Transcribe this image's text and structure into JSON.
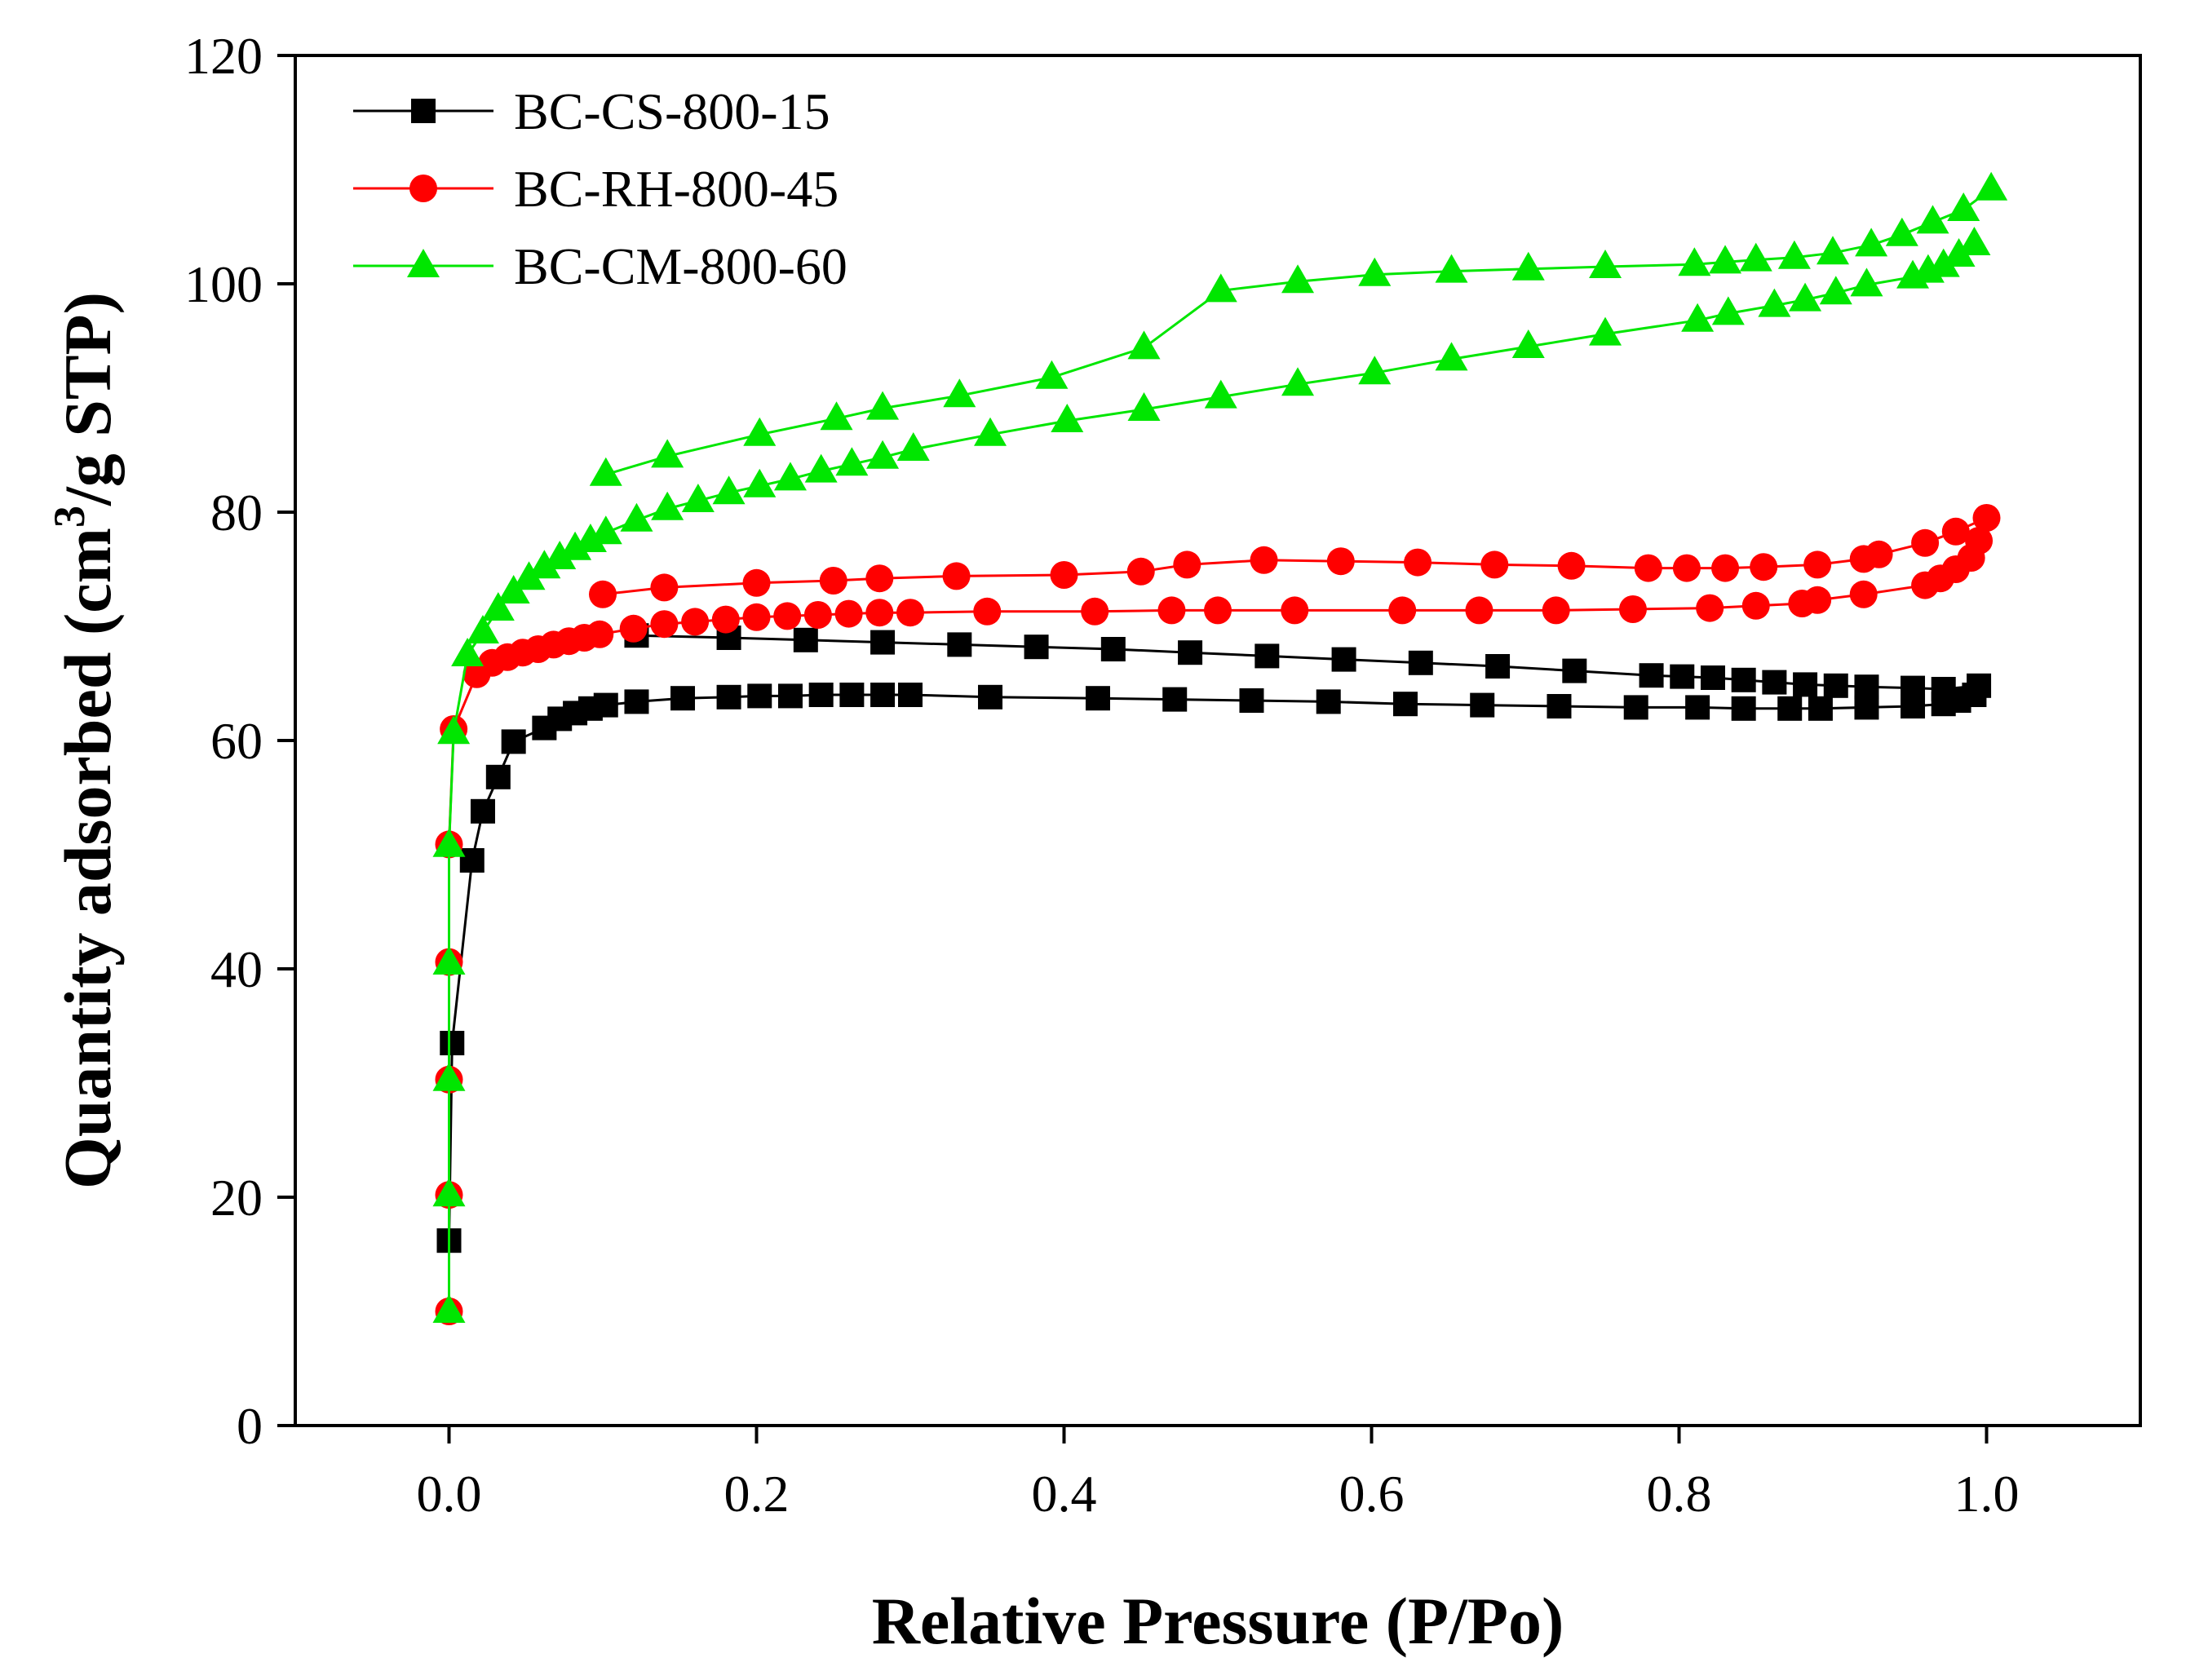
{
  "chart_data": {
    "type": "scatter",
    "xlabel": "Relative Pressure (P/Po)",
    "ylabel_parts": [
      "Quantity adsorbed (cm",
      "3",
      "/g STP)"
    ],
    "xlim": [
      -0.1,
      1.1
    ],
    "ylim": [
      0,
      120
    ],
    "x_ticks": [
      0.0,
      0.2,
      0.4,
      0.6,
      0.8,
      1.0
    ],
    "x_tick_labels": [
      "0.0",
      "0.2",
      "0.4",
      "0.6",
      "0.8",
      "1.0"
    ],
    "y_ticks": [
      0,
      20,
      40,
      60,
      80,
      100,
      120
    ],
    "y_tick_labels": [
      "0",
      "20",
      "40",
      "60",
      "80",
      "100",
      "120"
    ],
    "grid": false,
    "legend_position": "top-left",
    "series": [
      {
        "name": "BC-CS-800-15",
        "color": "#000000",
        "marker": "square",
        "adsorption": [
          [
            0.0,
            16.2
          ],
          [
            0.002,
            33.5
          ],
          [
            0.015,
            49.5
          ],
          [
            0.022,
            53.8
          ],
          [
            0.032,
            56.8
          ],
          [
            0.042,
            59.9
          ],
          [
            0.062,
            61.1
          ],
          [
            0.072,
            61.9
          ],
          [
            0.082,
            62.4
          ],
          [
            0.092,
            62.8
          ],
          [
            0.102,
            63.1
          ],
          [
            0.122,
            63.4
          ],
          [
            0.152,
            63.7
          ],
          [
            0.182,
            63.8
          ],
          [
            0.202,
            63.9
          ],
          [
            0.222,
            63.9
          ],
          [
            0.242,
            64.0
          ],
          [
            0.262,
            64.0
          ],
          [
            0.282,
            64.0
          ],
          [
            0.3,
            64.0
          ],
          [
            0.352,
            63.8
          ],
          [
            0.422,
            63.7
          ],
          [
            0.472,
            63.6
          ],
          [
            0.522,
            63.5
          ],
          [
            0.572,
            63.4
          ],
          [
            0.622,
            63.2
          ],
          [
            0.672,
            63.1
          ],
          [
            0.722,
            63.0
          ],
          [
            0.772,
            62.9
          ],
          [
            0.812,
            62.9
          ],
          [
            0.842,
            62.8
          ],
          [
            0.872,
            62.8
          ],
          [
            0.892,
            62.8
          ],
          [
            0.922,
            62.9
          ],
          [
            0.952,
            63.0
          ],
          [
            0.972,
            63.2
          ],
          [
            0.982,
            63.5
          ],
          [
            0.992,
            64.0
          ]
        ],
        "desorption": [
          [
            0.995,
            64.8
          ],
          [
            0.972,
            64.5
          ],
          [
            0.952,
            64.6
          ],
          [
            0.922,
            64.7
          ],
          [
            0.902,
            64.8
          ],
          [
            0.882,
            64.9
          ],
          [
            0.862,
            65.1
          ],
          [
            0.842,
            65.3
          ],
          [
            0.822,
            65.5
          ],
          [
            0.802,
            65.6
          ],
          [
            0.782,
            65.7
          ],
          [
            0.732,
            66.1
          ],
          [
            0.682,
            66.5
          ],
          [
            0.632,
            66.8
          ],
          [
            0.582,
            67.1
          ],
          [
            0.532,
            67.4
          ],
          [
            0.482,
            67.7
          ],
          [
            0.432,
            68.0
          ],
          [
            0.382,
            68.2
          ],
          [
            0.332,
            68.4
          ],
          [
            0.282,
            68.6
          ],
          [
            0.232,
            68.8
          ],
          [
            0.182,
            69.0
          ],
          [
            0.122,
            69.2
          ]
        ]
      },
      {
        "name": "BC-RH-800-45",
        "color": "#ff0000",
        "marker": "circle",
        "adsorption": [
          [
            0.0,
            10.0
          ],
          [
            0.0,
            20.2
          ],
          [
            0.0,
            30.3
          ],
          [
            0.0,
            40.6
          ],
          [
            0.0,
            50.9
          ],
          [
            0.003,
            61.0
          ],
          [
            0.018,
            65.8
          ],
          [
            0.028,
            66.8
          ],
          [
            0.038,
            67.3
          ],
          [
            0.048,
            67.7
          ],
          [
            0.058,
            68.0
          ],
          [
            0.068,
            68.4
          ],
          [
            0.078,
            68.7
          ],
          [
            0.088,
            69.0
          ],
          [
            0.098,
            69.3
          ],
          [
            0.12,
            69.8
          ],
          [
            0.14,
            70.2
          ],
          [
            0.16,
            70.4
          ],
          [
            0.18,
            70.6
          ],
          [
            0.2,
            70.8
          ],
          [
            0.22,
            70.9
          ],
          [
            0.24,
            71.0
          ],
          [
            0.26,
            71.1
          ],
          [
            0.28,
            71.2
          ],
          [
            0.3,
            71.2
          ],
          [
            0.35,
            71.3
          ],
          [
            0.42,
            71.3
          ],
          [
            0.47,
            71.4
          ],
          [
            0.5,
            71.4
          ],
          [
            0.55,
            71.4
          ],
          [
            0.62,
            71.4
          ],
          [
            0.67,
            71.4
          ],
          [
            0.72,
            71.4
          ],
          [
            0.77,
            71.5
          ],
          [
            0.82,
            71.6
          ],
          [
            0.85,
            71.8
          ],
          [
            0.88,
            72.0
          ],
          [
            0.89,
            72.3
          ],
          [
            0.92,
            72.8
          ],
          [
            0.96,
            73.6
          ],
          [
            0.97,
            74.2
          ],
          [
            0.98,
            75.0
          ],
          [
            0.99,
            76.0
          ],
          [
            0.995,
            77.5
          ]
        ],
        "desorption": [
          [
            1.0,
            79.5
          ],
          [
            0.98,
            78.3
          ],
          [
            0.96,
            77.3
          ],
          [
            0.93,
            76.3
          ],
          [
            0.92,
            75.9
          ],
          [
            0.89,
            75.4
          ],
          [
            0.855,
            75.2
          ],
          [
            0.83,
            75.1
          ],
          [
            0.805,
            75.1
          ],
          [
            0.78,
            75.1
          ],
          [
            0.73,
            75.3
          ],
          [
            0.68,
            75.4
          ],
          [
            0.63,
            75.6
          ],
          [
            0.58,
            75.7
          ],
          [
            0.53,
            75.8
          ],
          [
            0.48,
            75.4
          ],
          [
            0.45,
            74.8
          ],
          [
            0.4,
            74.5
          ],
          [
            0.33,
            74.4
          ],
          [
            0.28,
            74.2
          ],
          [
            0.25,
            74.0
          ],
          [
            0.2,
            73.8
          ],
          [
            0.14,
            73.4
          ],
          [
            0.1,
            72.8
          ]
        ]
      },
      {
        "name": "BC-CM-800-60",
        "color": "#00e600",
        "marker": "triangle",
        "adsorption": [
          [
            0.0,
            10.0
          ],
          [
            0.0,
            20.2
          ],
          [
            0.0,
            30.3
          ],
          [
            0.0,
            40.5
          ],
          [
            0.0,
            50.8
          ],
          [
            0.003,
            60.7
          ],
          [
            0.012,
            67.5
          ],
          [
            0.022,
            69.5
          ],
          [
            0.032,
            71.5
          ],
          [
            0.042,
            73.0
          ],
          [
            0.052,
            74.2
          ],
          [
            0.062,
            75.2
          ],
          [
            0.072,
            76.0
          ],
          [
            0.082,
            76.8
          ],
          [
            0.092,
            77.5
          ],
          [
            0.102,
            78.2
          ],
          [
            0.122,
            79.3
          ],
          [
            0.142,
            80.3
          ],
          [
            0.162,
            81.0
          ],
          [
            0.182,
            81.7
          ],
          [
            0.202,
            82.3
          ],
          [
            0.222,
            82.9
          ],
          [
            0.242,
            83.6
          ],
          [
            0.262,
            84.2
          ],
          [
            0.282,
            84.8
          ],
          [
            0.302,
            85.5
          ],
          [
            0.352,
            86.8
          ],
          [
            0.402,
            88.0
          ],
          [
            0.452,
            89.0
          ],
          [
            0.502,
            90.1
          ],
          [
            0.552,
            91.2
          ],
          [
            0.602,
            92.2
          ],
          [
            0.652,
            93.4
          ],
          [
            0.702,
            94.5
          ],
          [
            0.752,
            95.6
          ],
          [
            0.812,
            96.8
          ],
          [
            0.832,
            97.4
          ],
          [
            0.862,
            98.1
          ],
          [
            0.882,
            98.6
          ],
          [
            0.902,
            99.2
          ],
          [
            0.922,
            99.9
          ],
          [
            0.952,
            100.6
          ],
          [
            0.962,
            101.1
          ],
          [
            0.972,
            101.6
          ],
          [
            0.982,
            102.5
          ],
          [
            0.992,
            103.5
          ]
        ],
        "desorption": [
          [
            1.003,
            108.3
          ],
          [
            0.985,
            106.5
          ],
          [
            0.965,
            105.4
          ],
          [
            0.945,
            104.3
          ],
          [
            0.925,
            103.4
          ],
          [
            0.9,
            102.7
          ],
          [
            0.875,
            102.3
          ],
          [
            0.85,
            102.1
          ],
          [
            0.83,
            101.9
          ],
          [
            0.81,
            101.7
          ],
          [
            0.752,
            101.5
          ],
          [
            0.702,
            101.3
          ],
          [
            0.652,
            101.1
          ],
          [
            0.602,
            100.8
          ],
          [
            0.552,
            100.2
          ],
          [
            0.502,
            99.4
          ],
          [
            0.452,
            94.4
          ],
          [
            0.392,
            91.8
          ],
          [
            0.332,
            90.2
          ],
          [
            0.282,
            89.1
          ],
          [
            0.252,
            88.2
          ],
          [
            0.202,
            86.8
          ],
          [
            0.142,
            84.9
          ],
          [
            0.102,
            83.3
          ]
        ]
      }
    ]
  }
}
